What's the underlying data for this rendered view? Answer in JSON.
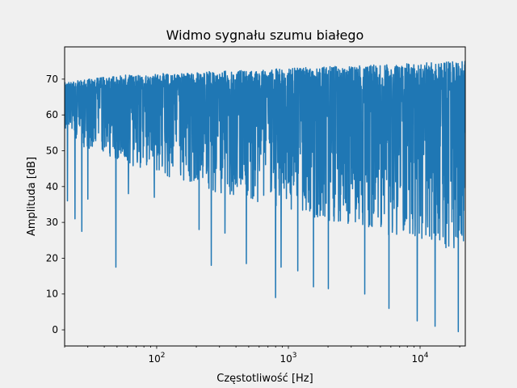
{
  "chart_data": {
    "type": "line",
    "title": "Widmo sygnału szumu białego",
    "xlabel": "Częstotliwość [Hz]",
    "ylabel": "Amplituda [dB]",
    "xscale": "log",
    "xlim": [
      20,
      22050
    ],
    "ylim": [
      -4.5,
      79
    ],
    "grid": false,
    "legend": "none",
    "line_color": "#1f77b4",
    "background_color": "#f0f0f0",
    "x_ticks": [
      {
        "value": 100,
        "base": "10",
        "exponent": "2"
      },
      {
        "value": 1000,
        "base": "10",
        "exponent": "3"
      },
      {
        "value": 10000,
        "base": "10",
        "exponent": "4"
      }
    ],
    "y_ticks": [
      {
        "value": 0,
        "label": "0"
      },
      {
        "value": 10,
        "label": "10"
      },
      {
        "value": 20,
        "label": "20"
      },
      {
        "value": 30,
        "label": "30"
      },
      {
        "value": 40,
        "label": "40"
      },
      {
        "value": 50,
        "label": "50"
      },
      {
        "value": 60,
        "label": "60"
      },
      {
        "value": 70,
        "label": "70"
      }
    ],
    "series": [
      {
        "upper_envelope": {
          "x": [
            20,
            30,
            50,
            100,
            200,
            500,
            1000,
            2000,
            5000,
            10000,
            22050
          ],
          "y": [
            69,
            70,
            71,
            71.5,
            72,
            72.5,
            73,
            73.5,
            74,
            74.5,
            75
          ]
        },
        "lower_envelope": {
          "x": [
            20,
            30,
            50,
            100,
            200,
            500,
            1000,
            2000,
            5000,
            10000,
            22050
          ],
          "y": [
            55,
            50,
            47,
            43,
            40,
            36,
            33,
            30,
            27,
            24,
            22
          ]
        },
        "notable_dips": {
          "x": [
            21,
            24,
            27,
            30,
            49,
            61,
            96,
            210,
            260,
            330,
            480,
            800,
            880,
            1180,
            1550,
            2010,
            3800,
            5800,
            9500,
            13000,
            19500
          ],
          "y": [
            36,
            31,
            27.5,
            36.5,
            17.5,
            38,
            37,
            28,
            18,
            27,
            18.5,
            9,
            17.5,
            16.5,
            12,
            11.5,
            10,
            6,
            2.5,
            1,
            -0.5
          ]
        }
      }
    ]
  }
}
